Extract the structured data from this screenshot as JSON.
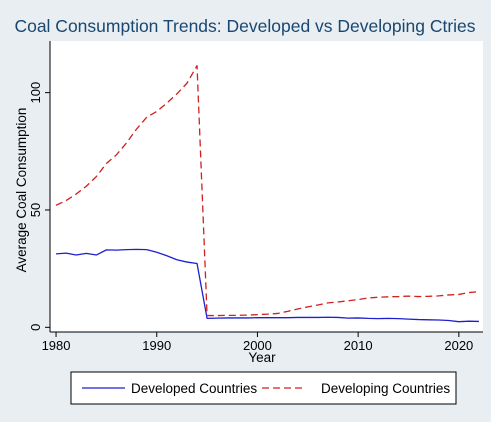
{
  "chart_data": {
    "type": "line",
    "title": "Coal Consumption Trends: Developed vs Developing Ctries",
    "xlabel": "Year",
    "ylabel": "Average Coal Consumption",
    "xlim": [
      1979.4,
      2022.4
    ],
    "ylim": [
      -2,
      122
    ],
    "xticks": [
      1980,
      1990,
      2000,
      2010,
      2020
    ],
    "yticks": [
      0,
      50,
      100
    ],
    "grid": false,
    "legend_position": "bottom",
    "colors": {
      "background": "#e8eef2",
      "plot_background": "#ffffff",
      "title": "#1a476f",
      "axis": "#000000"
    },
    "x": [
      1980,
      1981,
      1982,
      1983,
      1984,
      1985,
      1986,
      1987,
      1988,
      1989,
      1990,
      1991,
      1992,
      1993,
      1994,
      1995,
      1996,
      1997,
      1998,
      1999,
      2000,
      2001,
      2002,
      2003,
      2004,
      2005,
      2006,
      2007,
      2008,
      2009,
      2010,
      2011,
      2012,
      2013,
      2014,
      2015,
      2016,
      2017,
      2018,
      2019,
      2020,
      2021,
      2022
    ],
    "series": [
      {
        "name": "Developed Countries",
        "color": "#1f1fd0",
        "dash": "solid",
        "values": [
          31.3,
          31.6,
          30.8,
          31.5,
          30.8,
          33.0,
          32.9,
          33.1,
          33.2,
          33.1,
          32.0,
          30.5,
          28.8,
          27.8,
          27.2,
          3.8,
          3.9,
          4.0,
          4.0,
          4.0,
          4.1,
          4.1,
          4.1,
          4.1,
          4.2,
          4.2,
          4.2,
          4.3,
          4.2,
          3.9,
          4.0,
          3.8,
          3.7,
          3.8,
          3.7,
          3.5,
          3.3,
          3.2,
          3.1,
          2.9,
          2.4,
          2.6,
          2.5
        ]
      },
      {
        "name": "Developing Countries",
        "color": "#d02020",
        "dash": "dashed",
        "values": [
          52.0,
          54.0,
          56.8,
          60.1,
          64.2,
          69.8,
          73.5,
          78.6,
          84.5,
          89.5,
          92.0,
          95.5,
          99.5,
          104.0,
          111.5,
          5.0,
          5.0,
          5.1,
          5.1,
          5.2,
          5.4,
          5.6,
          5.9,
          6.8,
          7.8,
          8.7,
          9.5,
          10.4,
          10.8,
          11.3,
          11.8,
          12.5,
          12.8,
          13.0,
          13.1,
          13.3,
          13.1,
          13.2,
          13.4,
          13.8,
          14.0,
          14.8,
          15.2
        ]
      }
    ]
  }
}
